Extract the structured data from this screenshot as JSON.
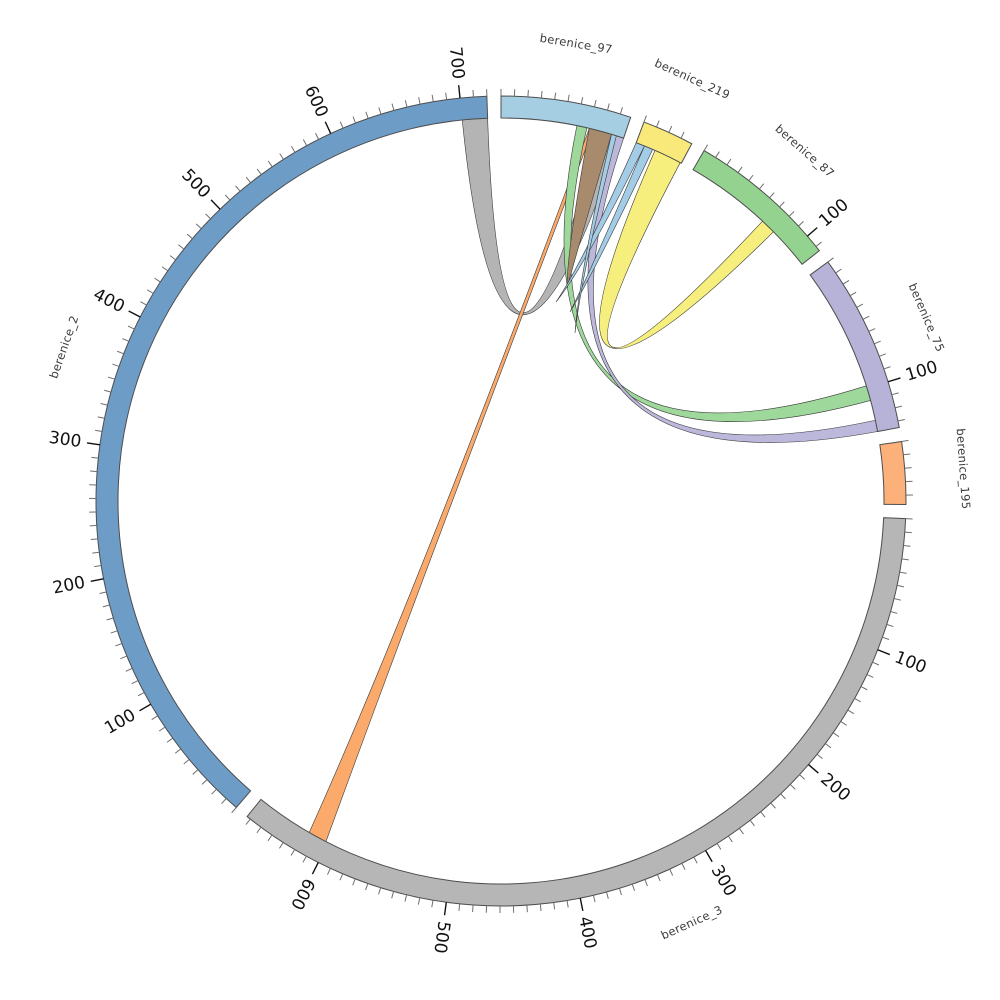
{
  "figure": {
    "background": "#ffffff",
    "description": "Circular chord (circos) diagram of berenice contigs with alignment ribbons"
  },
  "chart_data": {
    "type": "chord",
    "title": "",
    "units_per_minor_tick": 10,
    "units_per_major_tick": 100,
    "segments": [
      {
        "name": "berenice_97",
        "length": 98,
        "color": "#a6cee3",
        "major_tick_labels": []
      },
      {
        "name": "berenice_219",
        "length": 39,
        "color": "#f9e97a",
        "major_tick_labels": []
      },
      {
        "name": "berenice_87",
        "length": 114,
        "color": "#94d28f",
        "major_tick_labels": [
          "100"
        ]
      },
      {
        "name": "berenice_75",
        "length": 135,
        "color": "#b7b3d8",
        "major_tick_labels": [
          "100"
        ]
      },
      {
        "name": "berenice_195",
        "length": 47,
        "color": "#fbb179",
        "major_tick_labels": []
      },
      {
        "name": "berenice_3",
        "length": 663,
        "color": "#b6b6b6",
        "major_tick_labels": [
          "100",
          "200",
          "300",
          "400",
          "500",
          "600"
        ]
      },
      {
        "name": "berenice_2",
        "length": 720,
        "color": "#6d9cc7",
        "major_tick_labels": [
          "100",
          "200",
          "300",
          "400",
          "500",
          "600",
          "700"
        ]
      }
    ],
    "links": [
      {
        "name": "link-berenice_2-berenice_97",
        "color": "#b4b4b4",
        "source": {
          "segment": "berenice_2",
          "start": 700,
          "end": 720
        },
        "target": {
          "segment": "berenice_97",
          "start": 78,
          "end": 95
        }
      },
      {
        "name": "link-berenice_3-berenice_97",
        "color": "#fbaa6b",
        "source": {
          "segment": "berenice_3",
          "start": 602,
          "end": 617
        },
        "target": {
          "segment": "berenice_97",
          "start": 70,
          "end": 73
        },
        "ctrl": [
          414,
          600
        ]
      },
      {
        "name": "link-berenice_219-berenice_87",
        "color": "#f7ef7d",
        "source": {
          "segment": "berenice_219",
          "start": 16,
          "end": 38
        },
        "target": {
          "segment": "berenice_87",
          "start": 68,
          "end": 80
        }
      },
      {
        "name": "link-berenice_97-berenice_75-a",
        "color": "#9fd89b",
        "source": {
          "segment": "berenice_97",
          "start": 60,
          "end": 68
        },
        "target": {
          "segment": "berenice_75",
          "start": 98,
          "end": 110
        }
      },
      {
        "name": "link-berenice_97-berenice_75-b",
        "color": "#bcb8dc",
        "source": {
          "segment": "berenice_97",
          "start": 90,
          "end": 98
        },
        "target": {
          "segment": "berenice_75",
          "start": 126,
          "end": 135
        }
      },
      {
        "name": "link-berenice_97-taper",
        "color": "#a88a6d",
        "source": {
          "segment": "berenice_97",
          "start": 70,
          "end": 88
        },
        "tip": [
          567,
          288
        ]
      },
      {
        "name": "link-berenice_219-taper-a",
        "color": "#a3cce6",
        "source": {
          "segment": "berenice_219",
          "start": 0,
          "end": 7
        },
        "tip": [
          556,
          302
        ]
      },
      {
        "name": "link-berenice_219-taper-b",
        "color": "#a3cce6",
        "source": {
          "segment": "berenice_219",
          "start": 7,
          "end": 14
        },
        "tip": [
          570,
          312
        ]
      },
      {
        "name": "link-berenice_97-taper-b",
        "color": "#a3cce6",
        "source": {
          "segment": "berenice_97",
          "start": 88,
          "end": 92
        },
        "tip": [
          575,
          333
        ]
      }
    ]
  }
}
